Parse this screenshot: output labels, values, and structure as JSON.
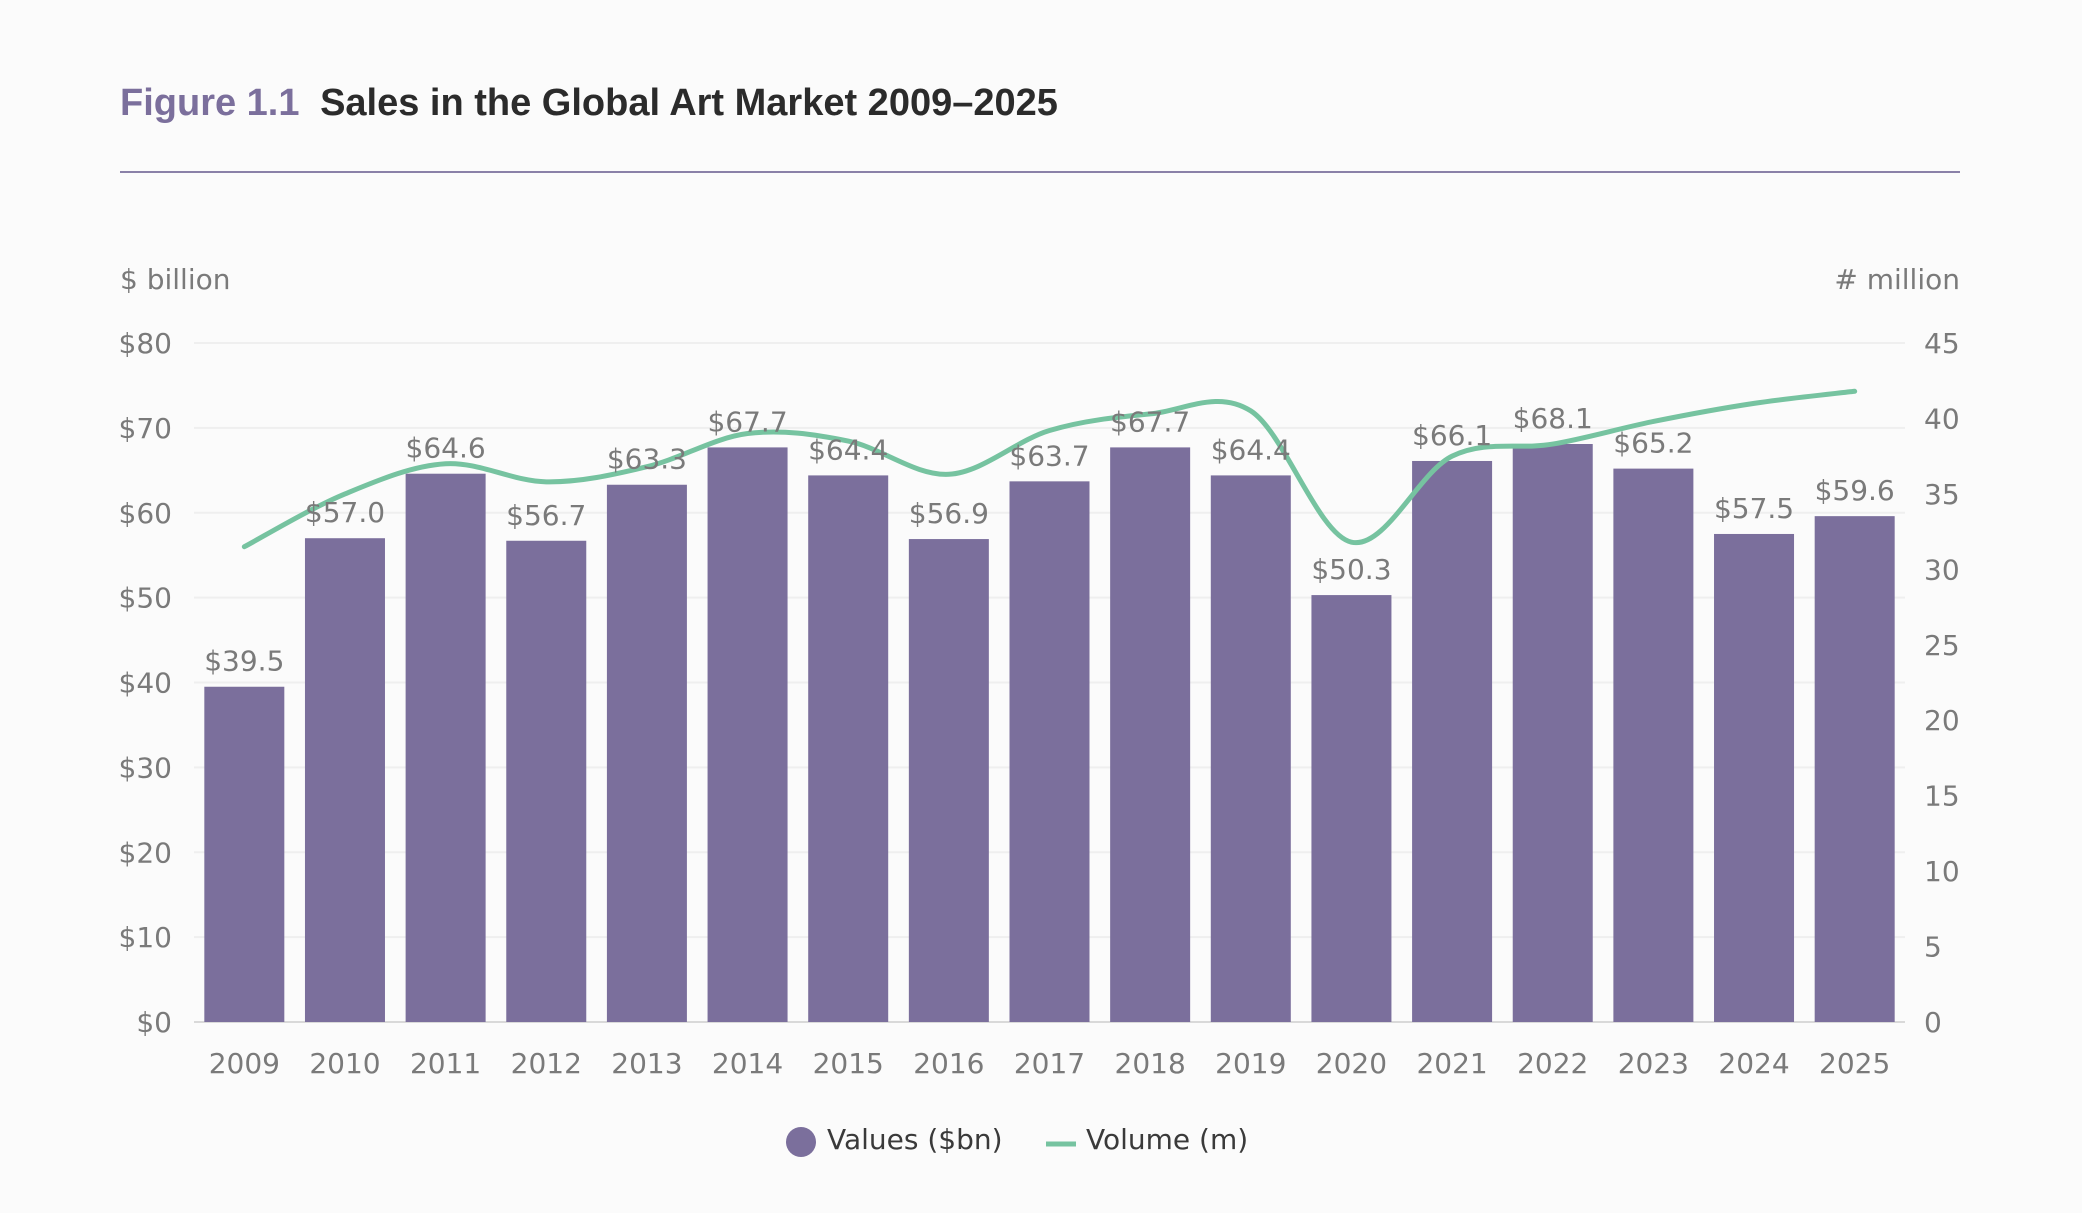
{
  "header": {
    "figure_label": "Figure 1.1",
    "title": "Sales in the Global Art Market 2009–2025"
  },
  "chart_data": {
    "type": "bar",
    "title": "Sales in the Global Art Market 2009–2025",
    "categories": [
      "2009",
      "2010",
      "2011",
      "2012",
      "2013",
      "2014",
      "2015",
      "2016",
      "2017",
      "2018",
      "2019",
      "2020",
      "2021",
      "2022",
      "2023",
      "2024",
      "2025"
    ],
    "series": [
      {
        "name": "Values ($bn)",
        "type": "bar",
        "axis": "left",
        "color": "#7b6f9c",
        "values": [
          39.5,
          57.0,
          64.6,
          56.7,
          63.3,
          67.7,
          64.4,
          56.9,
          63.7,
          67.7,
          64.4,
          50.3,
          66.1,
          68.1,
          65.2,
          57.5,
          59.6
        ],
        "labels": [
          "$39.5",
          "$57.0",
          "$64.6",
          "$56.7",
          "$63.3",
          "$67.7",
          "$64.4",
          "$56.9",
          "$63.7",
          "$67.7",
          "$64.4",
          "$50.3",
          "$66.1",
          "$68.1",
          "$65.2",
          "$57.5",
          "$59.6"
        ]
      },
      {
        "name": "Volume (m)",
        "type": "line",
        "axis": "right",
        "color": "#76c3a0",
        "values": [
          31.5,
          35.0,
          37.0,
          35.8,
          36.8,
          39.0,
          38.5,
          36.3,
          39.2,
          40.3,
          40.5,
          31.8,
          37.5,
          38.3,
          39.8,
          41.0,
          41.8
        ]
      }
    ],
    "ylabel_left": "$ billion",
    "ylabel_right": "# million",
    "ylim_left": [
      0,
      80
    ],
    "ylim_right": [
      0,
      45
    ],
    "yticks_left": [
      "$0",
      "$10",
      "$20",
      "$30",
      "$40",
      "$50",
      "$60",
      "$70",
      "$80"
    ],
    "yticks_right": [
      "0",
      "5",
      "10",
      "15",
      "20",
      "25",
      "30",
      "35",
      "40",
      "45"
    ],
    "grid": true,
    "legend_position": "bottom-center"
  }
}
